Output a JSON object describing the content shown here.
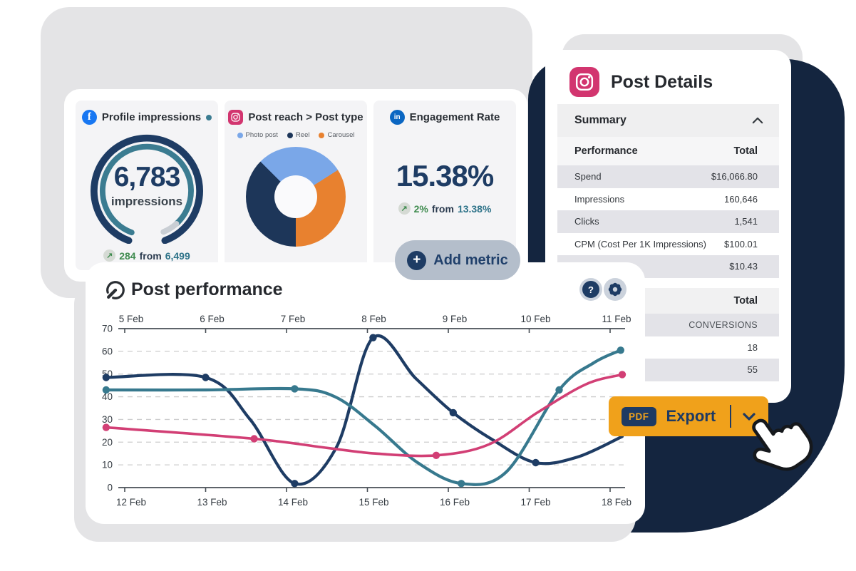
{
  "metrics_card": {
    "profile": {
      "network": "Facebook",
      "title": "Profile impressions",
      "value": "6,783",
      "unit": "impressions",
      "delta": "284",
      "from_label": "from",
      "previous": "6,499"
    },
    "reach": {
      "network": "Instagram",
      "title": "Post reach > Post type",
      "legend": [
        {
          "label": "Photo post",
          "color": "#7AA7E8"
        },
        {
          "label": "Reel",
          "color": "#1D3659"
        },
        {
          "label": "Carousel",
          "color": "#E8812F"
        }
      ]
    },
    "engagement": {
      "network": "LinkedIn",
      "title": "Engagement Rate",
      "value": "15.38%",
      "delta": "2%",
      "from_label": "from",
      "previous": "13.38%"
    },
    "add_metric_label": "Add metric"
  },
  "post_details": {
    "title": "Post Details",
    "summary_label": "Summary",
    "table": {
      "col_label": "Performance",
      "col_value": "Total",
      "rows": [
        {
          "label": "Spend",
          "value": "$16,066.80",
          "shaded": true
        },
        {
          "label": "Impressions",
          "value": "160,646",
          "shaded": false
        },
        {
          "label": "Clicks",
          "value": "1,541",
          "shaded": true
        },
        {
          "label": "CPM (Cost Per 1K Impressions)",
          "value": "$100.01",
          "shaded": false
        },
        {
          "label": "",
          "value": "$10.43",
          "shaded": true
        }
      ]
    },
    "table2": {
      "header_value": "Total",
      "rows": [
        {
          "label": "",
          "value": "CONVERSIONS",
          "shaded": true,
          "caps": true
        },
        {
          "label": "",
          "value": "18",
          "shaded": false
        },
        {
          "label": "",
          "value": "55",
          "shaded": true
        }
      ]
    }
  },
  "chart_card": {
    "title": "Post performance"
  },
  "export": {
    "badge": "PDF",
    "label": "Export"
  },
  "icons": {
    "up_right_arrow": "↗",
    "plus": "+",
    "question_mark": "?",
    "linkedin_glyph": "in",
    "facebook_glyph": "f"
  },
  "colors": {
    "navy_ink": "#1E3C64",
    "navy_blob": "#14253F",
    "teal": "#37798E",
    "pink": "#D23F75",
    "orange_donut": "#E8812F",
    "orange_export": "#F0A11B",
    "green": "#3F8B4F",
    "light_blue": "#7AA7E8",
    "facebook_blue": "#1877F2",
    "linkedin_blue": "#0A66C2",
    "instagram_pink": "#D2356F"
  },
  "chart_data": [
    {
      "type": "gauge",
      "title": "Profile impressions",
      "value": 6783,
      "unit": "impressions",
      "delta": 284,
      "previous": 6499,
      "progress_fraction": 0.94
    },
    {
      "type": "pie",
      "donut": true,
      "title": "Post reach > Post type",
      "labels": [
        "Photo post",
        "Reel",
        "Carousel"
      ],
      "values": [
        28.5,
        37.5,
        34
      ]
    },
    {
      "type": "stat",
      "title": "Engagement Rate",
      "value": "15.38%",
      "delta": "2%",
      "previous": "13.38%"
    },
    {
      "type": "line",
      "title": "Post performance",
      "x_labels_top": [
        "5 Feb",
        "6 Feb",
        "7 Feb",
        "8 Feb",
        "9 Feb",
        "10 Feb",
        "11 Feb"
      ],
      "x_labels_bottom": [
        "12 Feb",
        "13 Feb",
        "14 Feb",
        "15 Feb",
        "16 Feb",
        "17 Feb",
        "18 Feb"
      ],
      "ylim": [
        0,
        70
      ],
      "yticks": [
        0,
        10,
        20,
        30,
        40,
        50,
        60,
        70
      ],
      "grid": "dashed-horizontal",
      "series": [
        {
          "name": "series-navy",
          "color": "#1E3C64",
          "width": 4.2,
          "points": [
            [
              -0.23,
              48.5
            ],
            [
              1.0,
              48.5
            ],
            [
              1.55,
              30
            ],
            [
              2.1,
              1.8
            ],
            [
              2.62,
              18
            ],
            [
              3.07,
              66
            ],
            [
              3.6,
              48
            ],
            [
              4.06,
              33
            ],
            [
              4.55,
              21
            ],
            [
              5.08,
              11
            ],
            [
              5.6,
              13.5
            ],
            [
              6.15,
              22.5
            ]
          ],
          "dots": [
            0,
            1,
            3,
            5,
            7,
            9
          ]
        },
        {
          "name": "series-teal",
          "color": "#37798E",
          "width": 4.2,
          "points": [
            [
              -0.23,
              43
            ],
            [
              1.0,
              43
            ],
            [
              2.1,
              43.5
            ],
            [
              2.6,
              40
            ],
            [
              3.1,
              27
            ],
            [
              3.62,
              11
            ],
            [
              4.16,
              1.8
            ],
            [
              4.72,
              7
            ],
            [
              5.37,
              43
            ],
            [
              5.8,
              55
            ],
            [
              6.13,
              60.5
            ]
          ],
          "dots": [
            0,
            2,
            6,
            8,
            10
          ]
        },
        {
          "name": "series-pink",
          "color": "#D23F75",
          "width": 3.6,
          "points": [
            [
              -0.23,
              26.5
            ],
            [
              1.6,
              21.5
            ],
            [
              2.5,
              17.5
            ],
            [
              3.1,
              15
            ],
            [
              3.85,
              14.2
            ],
            [
              4.5,
              19
            ],
            [
              5.1,
              33
            ],
            [
              5.7,
              45.5
            ],
            [
              6.15,
              49.8
            ]
          ],
          "dots": [
            0,
            1,
            4,
            8
          ]
        }
      ]
    }
  ]
}
